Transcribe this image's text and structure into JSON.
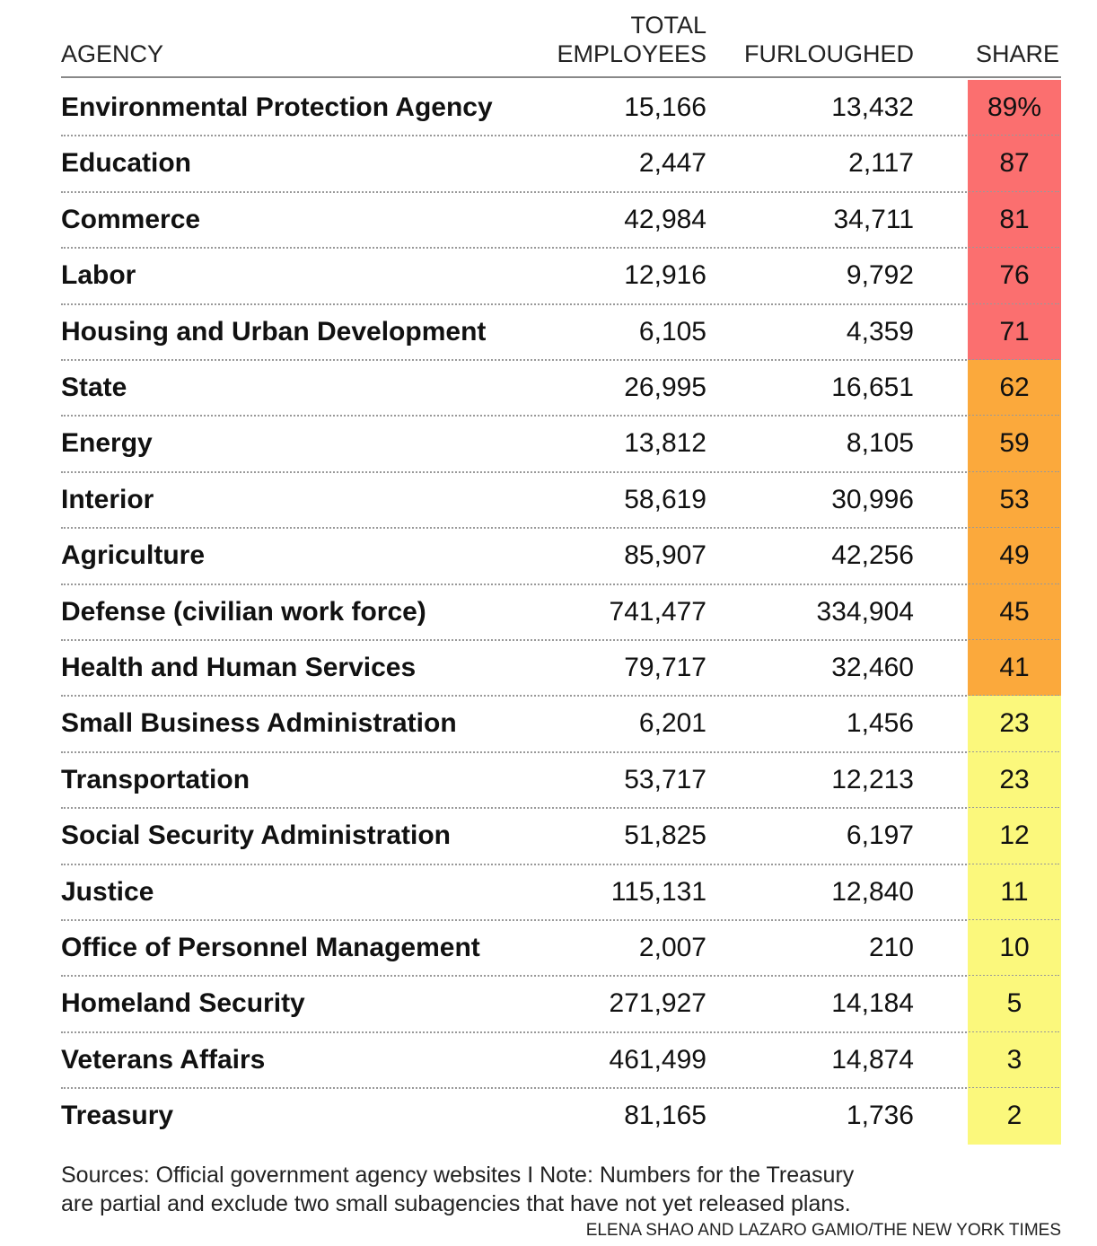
{
  "header": {
    "agency": "AGENCY",
    "total_line1": "TOTAL",
    "total_line2": "EMPLOYEES",
    "furloughed": "FURLOUGHED",
    "share": "SHARE"
  },
  "table": {
    "rows": [
      {
        "agency": "Environmental Protection Agency",
        "total": "15,166",
        "furloughed": "13,432",
        "share": "89%",
        "color": "#fb6f6f"
      },
      {
        "agency": "Education",
        "total": "2,447",
        "furloughed": "2,117",
        "share": "87",
        "color": "#fb6f6f"
      },
      {
        "agency": "Commerce",
        "total": "42,984",
        "furloughed": "34,711",
        "share": "81",
        "color": "#fb6f6f"
      },
      {
        "agency": "Labor",
        "total": "12,916",
        "furloughed": "9,792",
        "share": "76",
        "color": "#fb6f6f"
      },
      {
        "agency": "Housing and Urban Development",
        "total": "6,105",
        "furloughed": "4,359",
        "share": "71",
        "color": "#fb6f6f"
      },
      {
        "agency": "State",
        "total": "26,995",
        "furloughed": "16,651",
        "share": "62",
        "color": "#fba93c"
      },
      {
        "agency": "Energy",
        "total": "13,812",
        "furloughed": "8,105",
        "share": "59",
        "color": "#fba93c"
      },
      {
        "agency": "Interior",
        "total": "58,619",
        "furloughed": "30,996",
        "share": "53",
        "color": "#fba93c"
      },
      {
        "agency": "Agriculture",
        "total": "85,907",
        "furloughed": "42,256",
        "share": "49",
        "color": "#fba93c"
      },
      {
        "agency": "Defense (civilian work force)",
        "total": "741,477",
        "furloughed": "334,904",
        "share": "45",
        "color": "#fba93c"
      },
      {
        "agency": "Health and Human Services",
        "total": "79,717",
        "furloughed": "32,460",
        "share": "41",
        "color": "#fba93c"
      },
      {
        "agency": "Small Business Administration",
        "total": "6,201",
        "furloughed": "1,456",
        "share": "23",
        "color": "#fbf87c"
      },
      {
        "agency": "Transportation",
        "total": "53,717",
        "furloughed": "12,213",
        "share": "23",
        "color": "#fbf87c"
      },
      {
        "agency": "Social Security Administration",
        "total": "51,825",
        "furloughed": "6,197",
        "share": "12",
        "color": "#fbf87c"
      },
      {
        "agency": "Justice",
        "total": "115,131",
        "furloughed": "12,840",
        "share": "11",
        "color": "#fbf87c"
      },
      {
        "agency": "Office of Personnel Management",
        "total": "2,007",
        "furloughed": "210",
        "share": "10",
        "color": "#fbf87c"
      },
      {
        "agency": "Homeland Security",
        "total": "271,927",
        "furloughed": "14,184",
        "share": "5",
        "color": "#fbf87c"
      },
      {
        "agency": "Veterans Affairs",
        "total": "461,499",
        "furloughed": "14,874",
        "share": "3",
        "color": "#fbf87c"
      },
      {
        "agency": "Treasury",
        "total": "81,165",
        "furloughed": "1,736",
        "share": "2",
        "color": "#fbf87c"
      }
    ]
  },
  "footer": {
    "note_line1": "Sources: Official government agency websites  I  Note: Numbers for the Treasury",
    "note_line2": "are partial and exclude two small subagencies that have not yet released plans.",
    "credit": "ELENA SHAO AND LAZARO GAMIO/THE NEW YORK TIMES"
  }
}
